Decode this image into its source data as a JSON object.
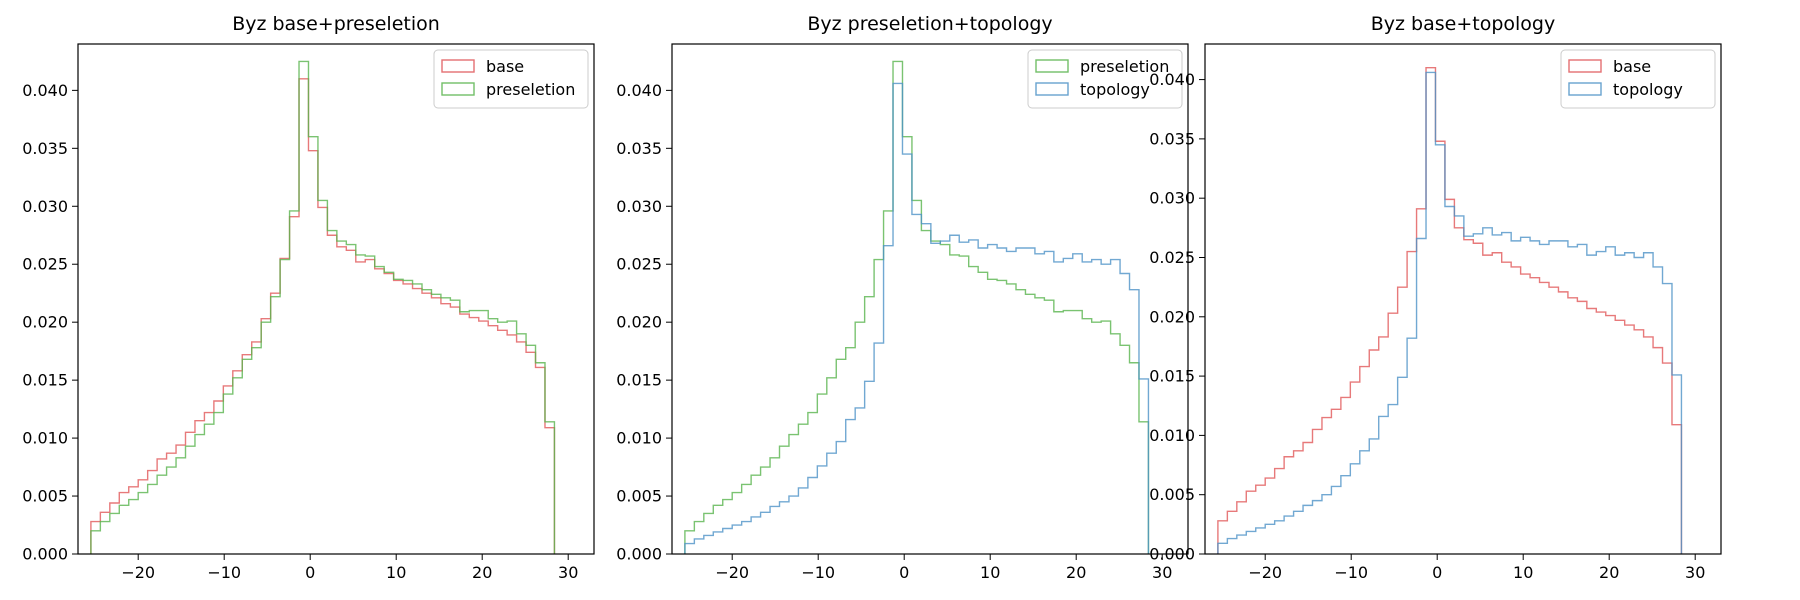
{
  "colors": {
    "base": "#e15759",
    "preseletion": "#59b44d",
    "topology": "#4e92c7"
  },
  "chart_data": [
    {
      "type": "histogram-step",
      "title": "Byz base+preseletion",
      "xlim": [
        -27,
        33
      ],
      "ylim": [
        0,
        0.044
      ],
      "xticks": [
        -20,
        -10,
        0,
        10,
        20,
        30
      ],
      "yticks": [
        0.0,
        0.005,
        0.01,
        0.015,
        0.02,
        0.025,
        0.03,
        0.035,
        0.04
      ],
      "ytick_labels": [
        "0.000",
        "0.005",
        "0.010",
        "0.015",
        "0.020",
        "0.025",
        "0.030",
        "0.035",
        "0.040"
      ],
      "bin_start": -25.5,
      "bin_width": 1.1,
      "legend_position": "upper-right",
      "series": [
        {
          "name": "base",
          "color_key": "base",
          "values": [
            0.0028,
            0.0036,
            0.0044,
            0.0053,
            0.0058,
            0.0064,
            0.0072,
            0.0082,
            0.0087,
            0.0094,
            0.0105,
            0.0115,
            0.0122,
            0.0132,
            0.0145,
            0.0158,
            0.0172,
            0.0183,
            0.0203,
            0.0225,
            0.0255,
            0.0291,
            0.041,
            0.0348,
            0.0299,
            0.0275,
            0.0265,
            0.0262,
            0.0252,
            0.0254,
            0.0246,
            0.0242,
            0.0236,
            0.0233,
            0.0229,
            0.0225,
            0.0221,
            0.0216,
            0.0213,
            0.0207,
            0.0204,
            0.0201,
            0.0197,
            0.0193,
            0.0189,
            0.0183,
            0.0174,
            0.0161,
            0.0109
          ]
        },
        {
          "name": "preseletion",
          "color_key": "preseletion",
          "values": [
            0.002,
            0.0028,
            0.0035,
            0.0042,
            0.0047,
            0.0053,
            0.006,
            0.0068,
            0.0075,
            0.0083,
            0.0093,
            0.0103,
            0.0112,
            0.0122,
            0.0138,
            0.0152,
            0.0168,
            0.0178,
            0.02,
            0.0222,
            0.0254,
            0.0296,
            0.0425,
            0.036,
            0.0305,
            0.0279,
            0.027,
            0.0267,
            0.0258,
            0.0257,
            0.0248,
            0.0243,
            0.0237,
            0.0236,
            0.0233,
            0.0228,
            0.0224,
            0.0221,
            0.0219,
            0.0209,
            0.021,
            0.021,
            0.0203,
            0.02,
            0.0201,
            0.019,
            0.018,
            0.0165,
            0.0114
          ]
        }
      ]
    },
    {
      "type": "histogram-step",
      "title": "Byz preseletion+topology",
      "xlim": [
        -27,
        33
      ],
      "ylim": [
        0,
        0.044
      ],
      "xticks": [
        -20,
        -10,
        0,
        10,
        20,
        30
      ],
      "yticks": [
        0.0,
        0.005,
        0.01,
        0.015,
        0.02,
        0.025,
        0.03,
        0.035,
        0.04
      ],
      "ytick_labels": [
        "0.000",
        "0.005",
        "0.010",
        "0.015",
        "0.020",
        "0.025",
        "0.030",
        "0.035",
        "0.040"
      ],
      "bin_start": -25.5,
      "bin_width": 1.1,
      "legend_position": "upper-right",
      "series": [
        {
          "name": "preseletion",
          "color_key": "preseletion",
          "values": [
            0.002,
            0.0028,
            0.0035,
            0.0042,
            0.0047,
            0.0053,
            0.006,
            0.0068,
            0.0075,
            0.0083,
            0.0093,
            0.0103,
            0.0112,
            0.0122,
            0.0138,
            0.0152,
            0.0168,
            0.0178,
            0.02,
            0.0222,
            0.0254,
            0.0296,
            0.0425,
            0.036,
            0.0305,
            0.0279,
            0.027,
            0.0267,
            0.0258,
            0.0257,
            0.0248,
            0.0243,
            0.0237,
            0.0236,
            0.0233,
            0.0228,
            0.0224,
            0.0221,
            0.0219,
            0.0209,
            0.021,
            0.021,
            0.0203,
            0.02,
            0.0201,
            0.019,
            0.018,
            0.0165,
            0.0114
          ]
        },
        {
          "name": "topology",
          "color_key": "topology",
          "values": [
            0.0009,
            0.0013,
            0.0016,
            0.0019,
            0.0022,
            0.0025,
            0.0028,
            0.0032,
            0.0036,
            0.0041,
            0.0045,
            0.005,
            0.0057,
            0.0066,
            0.0076,
            0.0087,
            0.0097,
            0.0116,
            0.0126,
            0.0149,
            0.0182,
            0.0266,
            0.0406,
            0.0345,
            0.0293,
            0.0285,
            0.0268,
            0.027,
            0.0275,
            0.0269,
            0.0271,
            0.0264,
            0.0267,
            0.0264,
            0.0261,
            0.0264,
            0.0264,
            0.0259,
            0.0261,
            0.0252,
            0.0255,
            0.0259,
            0.0252,
            0.0254,
            0.025,
            0.0254,
            0.0242,
            0.0228,
            0.0151
          ]
        }
      ]
    },
    {
      "type": "histogram-step",
      "title": "Byz base+topology",
      "xlim": [
        -27,
        33
      ],
      "ylim": [
        0,
        0.043
      ],
      "xticks": [
        -20,
        -10,
        0,
        10,
        20,
        30
      ],
      "yticks": [
        0.0,
        0.005,
        0.01,
        0.015,
        0.02,
        0.025,
        0.03,
        0.035,
        0.04
      ],
      "ytick_labels": [
        "0.000",
        "0.005",
        "0.010",
        "0.015",
        "0.020",
        "0.025",
        "0.030",
        "0.035",
        "0.040"
      ],
      "bin_start": -25.5,
      "bin_width": 1.1,
      "legend_position": "upper-right",
      "series": [
        {
          "name": "base",
          "color_key": "base",
          "values": [
            0.0028,
            0.0036,
            0.0044,
            0.0053,
            0.0058,
            0.0064,
            0.0072,
            0.0082,
            0.0087,
            0.0094,
            0.0105,
            0.0115,
            0.0122,
            0.0132,
            0.0145,
            0.0158,
            0.0172,
            0.0183,
            0.0203,
            0.0225,
            0.0255,
            0.0291,
            0.041,
            0.0348,
            0.0299,
            0.0275,
            0.0265,
            0.0262,
            0.0252,
            0.0254,
            0.0246,
            0.0242,
            0.0236,
            0.0233,
            0.0229,
            0.0225,
            0.0221,
            0.0216,
            0.0213,
            0.0207,
            0.0204,
            0.0201,
            0.0197,
            0.0193,
            0.0189,
            0.0183,
            0.0174,
            0.0161,
            0.0109
          ]
        },
        {
          "name": "topology",
          "color_key": "topology",
          "values": [
            0.0009,
            0.0013,
            0.0016,
            0.0019,
            0.0022,
            0.0025,
            0.0028,
            0.0032,
            0.0036,
            0.0041,
            0.0045,
            0.005,
            0.0057,
            0.0066,
            0.0076,
            0.0087,
            0.0097,
            0.0116,
            0.0126,
            0.0149,
            0.0182,
            0.0266,
            0.0406,
            0.0345,
            0.0293,
            0.0285,
            0.0268,
            0.027,
            0.0275,
            0.0269,
            0.0271,
            0.0264,
            0.0267,
            0.0264,
            0.0261,
            0.0264,
            0.0264,
            0.0259,
            0.0261,
            0.0252,
            0.0255,
            0.0259,
            0.0252,
            0.0254,
            0.025,
            0.0254,
            0.0242,
            0.0228,
            0.0151
          ]
        }
      ]
    }
  ]
}
